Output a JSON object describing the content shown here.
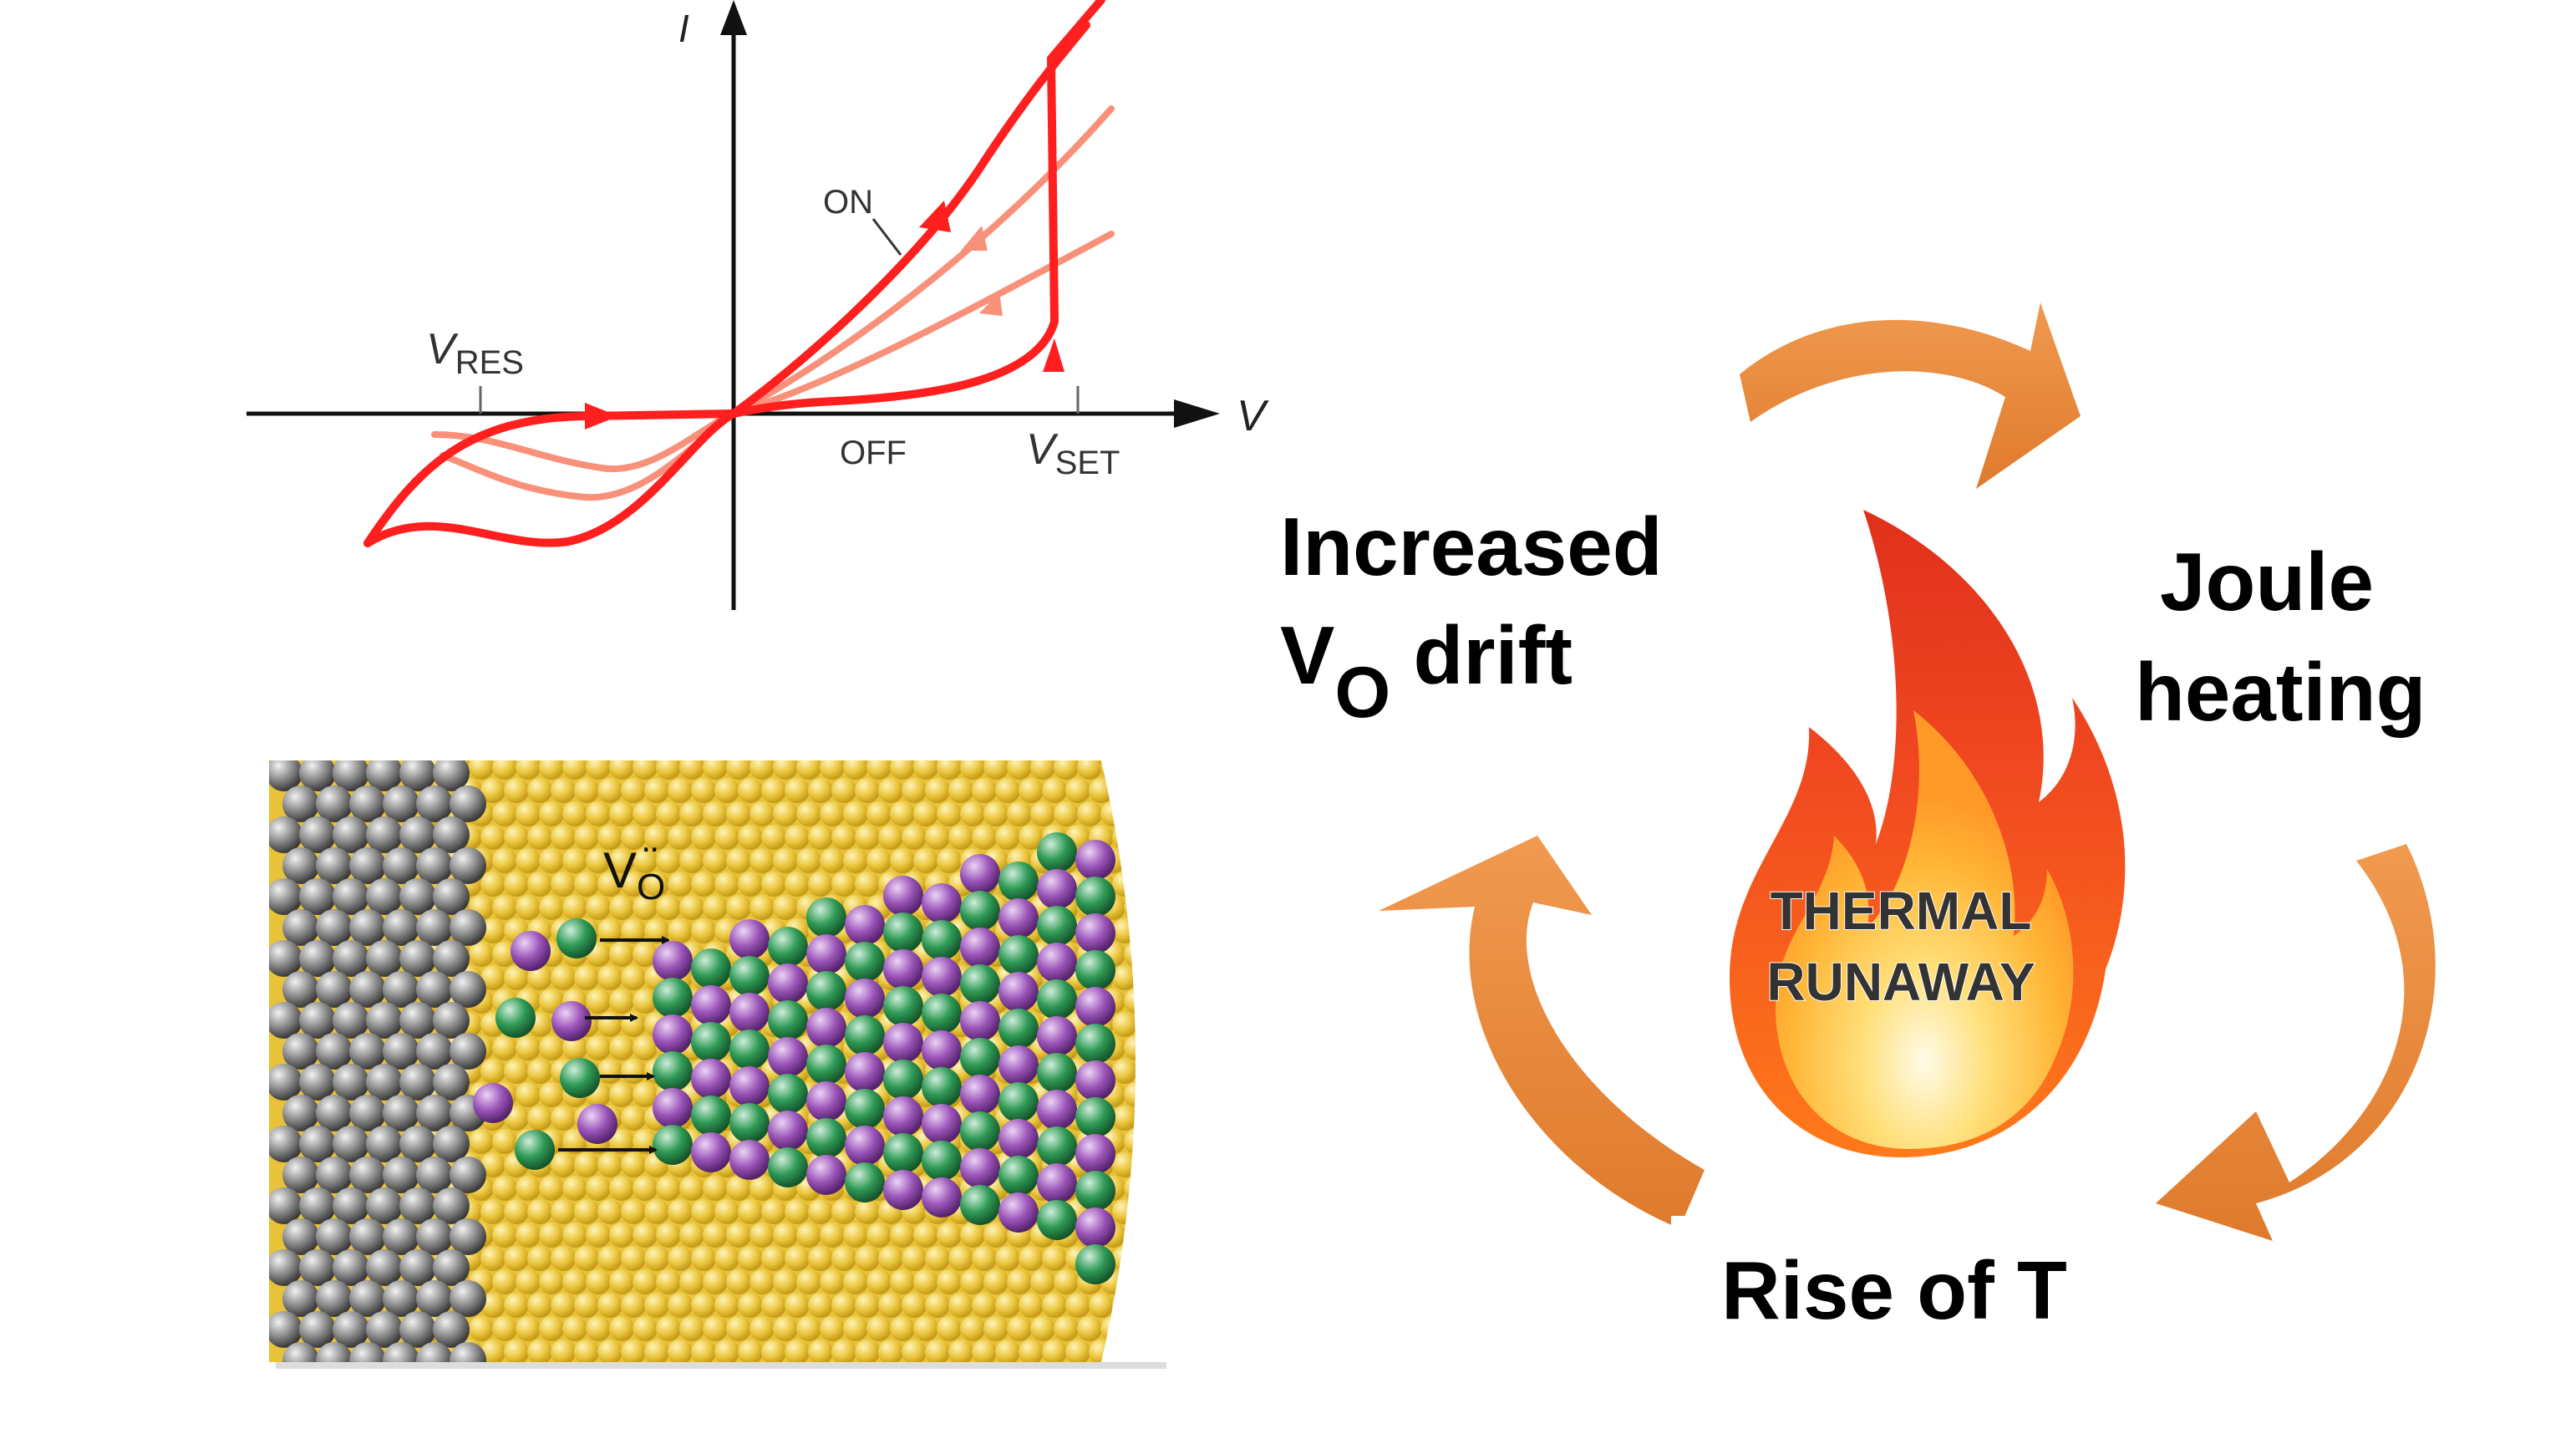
{
  "iv_plot": {
    "axis_i": "I",
    "axis_v": "V",
    "label_on": "ON",
    "label_off": "OFF",
    "v_res": {
      "main": "V",
      "sub": "RES"
    },
    "v_set": {
      "main": "V",
      "sub": "SET"
    }
  },
  "filament": {
    "vo": {
      "main": "V",
      "sub": "O",
      "superscript": "¨"
    }
  },
  "cycle": {
    "increased_line1": "Increased",
    "increased_line2_main": "V",
    "increased_line2_sub": "O",
    "increased_line2_rest": " drift",
    "joule_line1": "Joule",
    "joule_line2": "heating",
    "rise": "Rise of T",
    "flame_line1": "THERMAL",
    "flame_line2": "RUNAWAY"
  },
  "colors": {
    "curve_main": "#ff1f1f",
    "curve_light": "#f8907a",
    "cycle_arrow": "#e8863a",
    "electrode": "#8a8a8a",
    "oxide": "#e8c238",
    "atom_green": "#2f9a55",
    "atom_purple": "#9b55b8"
  }
}
